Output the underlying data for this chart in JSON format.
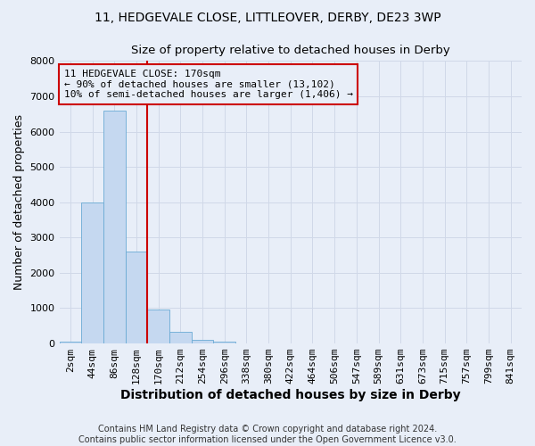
{
  "title": "11, HEDGEVALE CLOSE, LITTLEOVER, DERBY, DE23 3WP",
  "subtitle": "Size of property relative to detached houses in Derby",
  "xlabel": "Distribution of detached houses by size in Derby",
  "ylabel": "Number of detached properties",
  "footer_line1": "Contains HM Land Registry data © Crown copyright and database right 2024.",
  "footer_line2": "Contains public sector information licensed under the Open Government Licence v3.0.",
  "bar_labels": [
    "2sqm",
    "44sqm",
    "86sqm",
    "128sqm",
    "170sqm",
    "212sqm",
    "254sqm",
    "296sqm",
    "338sqm",
    "380sqm",
    "422sqm",
    "464sqm",
    "506sqm",
    "547sqm",
    "589sqm",
    "631sqm",
    "673sqm",
    "715sqm",
    "757sqm",
    "799sqm",
    "841sqm"
  ],
  "bar_values": [
    60,
    4000,
    6600,
    2600,
    950,
    330,
    110,
    60,
    0,
    0,
    0,
    0,
    0,
    0,
    0,
    0,
    0,
    0,
    0,
    0,
    0
  ],
  "bar_color": "#c5d8f0",
  "bar_edge_color": "#6aaad4",
  "vline_index": 3.5,
  "vline_color": "#cc0000",
  "annotation_line1": "11 HEDGEVALE CLOSE: 170sqm",
  "annotation_line2": "← 90% of detached houses are smaller (13,102)",
  "annotation_line3": "10% of semi-detached houses are larger (1,406) →",
  "annotation_box_color": "#cc0000",
  "ylim": [
    0,
    8000
  ],
  "yticks": [
    0,
    1000,
    2000,
    3000,
    4000,
    5000,
    6000,
    7000,
    8000
  ],
  "bg_color": "#e8eef8",
  "plot_bg_color": "#e8eef8",
  "grid_color": "#d0d8e8",
  "title_fontsize": 10,
  "subtitle_fontsize": 9.5,
  "xlabel_fontsize": 10,
  "ylabel_fontsize": 9,
  "tick_fontsize": 8,
  "annot_fontsize": 8,
  "footer_fontsize": 7
}
